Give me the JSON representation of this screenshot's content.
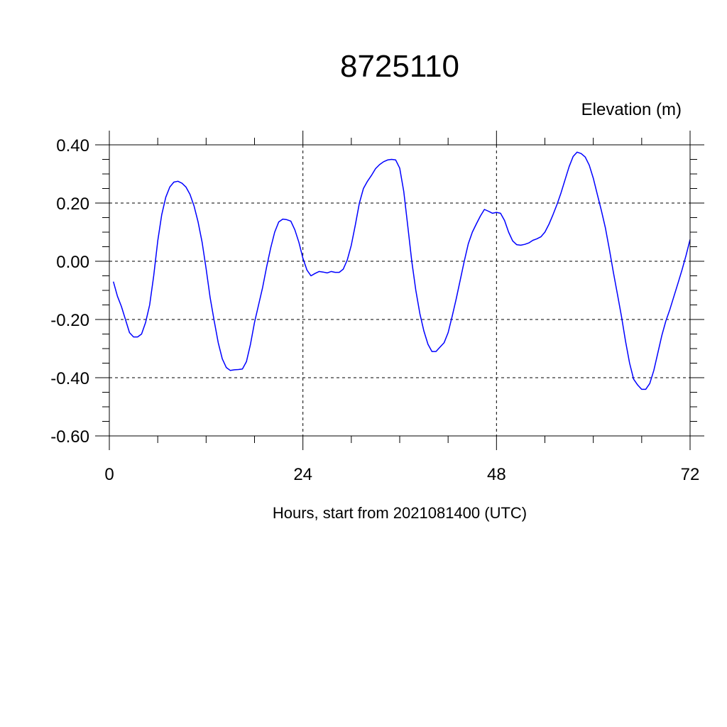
{
  "chart_data": {
    "type": "line",
    "title": "8725110",
    "ylabel": "Elevation (m)",
    "xlabel": "Hours, start from 2021081400 (UTC)",
    "xlim": [
      0,
      72
    ],
    "ylim": [
      -0.6,
      0.4
    ],
    "x_ticks": [
      0,
      24,
      48,
      72
    ],
    "x_tick_labels": [
      "0",
      "24",
      "48",
      "72"
    ],
    "y_ticks": [
      0.4,
      0.2,
      0.0,
      -0.2,
      -0.4,
      -0.6
    ],
    "y_tick_labels": [
      "0.40",
      "0.20",
      "0.00",
      "-0.20",
      "-0.40",
      "-0.60"
    ],
    "grid": "dashed at major ticks",
    "colors": {
      "series": "#0000ff"
    },
    "series": [
      {
        "x": [
          0.5,
          1,
          1.5,
          2,
          2.5,
          3,
          3.5,
          4,
          4.5,
          5,
          5.5,
          6,
          6.5,
          7,
          7.5,
          8,
          8.5,
          9,
          9.5,
          10,
          10.5,
          11,
          11.5,
          12,
          12.5,
          13,
          13.5,
          14,
          14.5,
          15,
          15.5,
          16,
          16.5,
          17,
          17.5,
          18,
          18.5,
          19,
          19.5,
          20,
          20.5,
          21,
          21.5,
          22,
          22.5,
          23,
          23.5,
          24,
          24.5,
          25,
          25.5,
          26,
          26.5,
          27,
          27.5,
          28,
          28.5,
          29,
          29.5,
          30,
          30.5,
          31,
          31.5,
          32,
          32.5,
          33,
          33.5,
          34,
          34.5,
          35,
          35.5,
          36,
          36.5,
          37,
          37.5,
          38,
          38.5,
          39,
          39.5,
          40,
          40.5,
          41,
          41.5,
          42,
          42.5,
          43,
          43.5,
          44,
          44.5,
          45,
          45.5,
          46,
          46.5,
          47,
          47.5,
          48,
          48.5,
          49,
          49.5,
          50,
          50.5,
          51,
          51.5,
          52,
          52.5,
          53,
          53.5,
          54,
          54.5,
          55,
          55.5,
          56,
          56.5,
          57,
          57.5,
          58,
          58.5,
          59,
          59.5,
          60,
          60.5,
          61,
          61.5,
          62,
          62.5,
          63,
          63.5,
          64,
          64.5,
          65,
          65.5,
          66,
          66.5,
          67,
          67.5,
          68,
          68.5,
          69,
          69.5,
          70,
          70.5,
          71,
          71.5,
          72
        ],
        "values": [
          -0.07,
          -0.12,
          -0.155,
          -0.2,
          -0.245,
          -0.26,
          -0.26,
          -0.25,
          -0.21,
          -0.15,
          -0.05,
          0.07,
          0.16,
          0.22,
          0.255,
          0.272,
          0.275,
          0.268,
          0.255,
          0.23,
          0.19,
          0.135,
          0.065,
          -0.025,
          -0.125,
          -0.205,
          -0.28,
          -0.335,
          -0.365,
          -0.375,
          -0.373,
          -0.372,
          -0.37,
          -0.345,
          -0.285,
          -0.21,
          -0.15,
          -0.09,
          -0.02,
          0.045,
          0.1,
          0.135,
          0.145,
          0.143,
          0.138,
          0.108,
          0.065,
          0.01,
          -0.03,
          -0.05,
          -0.042,
          -0.035,
          -0.037,
          -0.04,
          -0.035,
          -0.038,
          -0.038,
          -0.027,
          0.005,
          0.055,
          0.125,
          0.2,
          0.25,
          0.275,
          0.295,
          0.318,
          0.332,
          0.342,
          0.348,
          0.35,
          0.348,
          0.32,
          0.24,
          0.12,
          0.0,
          -0.1,
          -0.18,
          -0.24,
          -0.285,
          -0.31,
          -0.31,
          -0.295,
          -0.28,
          -0.245,
          -0.19,
          -0.13,
          -0.065,
          0.0,
          0.06,
          0.1,
          0.128,
          0.155,
          0.178,
          0.172,
          0.165,
          0.168,
          0.165,
          0.14,
          0.1,
          0.07,
          0.057,
          0.055,
          0.058,
          0.063,
          0.072,
          0.077,
          0.084,
          0.1,
          0.127,
          0.16,
          0.195,
          0.235,
          0.28,
          0.325,
          0.36,
          0.375,
          0.37,
          0.358,
          0.33,
          0.285,
          0.23,
          0.175,
          0.115,
          0.04,
          -0.04,
          -0.115,
          -0.19,
          -0.275,
          -0.35,
          -0.405,
          -0.425,
          -0.44,
          -0.44,
          -0.42,
          -0.375,
          -0.315,
          -0.255,
          -0.205,
          -0.165,
          -0.12,
          -0.075,
          -0.03,
          0.02,
          0.075
        ]
      }
    ]
  }
}
